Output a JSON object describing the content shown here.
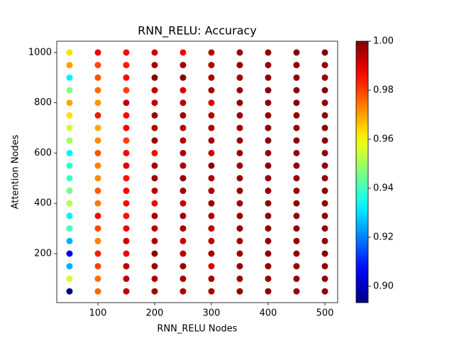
{
  "chart_data": {
    "type": "scatter",
    "title": "RNN_RELU: Accuracy",
    "x_label": "RNN_RELU Nodes",
    "y_label": "Attention Nodes",
    "x": [
      50,
      50,
      50,
      50,
      50,
      50,
      50,
      50,
      50,
      50,
      50,
      50,
      50,
      50,
      50,
      50,
      50,
      50,
      50,
      50,
      100,
      100,
      100,
      100,
      100,
      100,
      100,
      100,
      100,
      100,
      100,
      100,
      100,
      100,
      100,
      100,
      100,
      100,
      100,
      100,
      150,
      150,
      150,
      150,
      150,
      150,
      150,
      150,
      150,
      150,
      150,
      150,
      150,
      150,
      150,
      150,
      150,
      150,
      150,
      150,
      200,
      200,
      200,
      200,
      200,
      200,
      200,
      200,
      200,
      200,
      200,
      200,
      200,
      200,
      200,
      200,
      200,
      200,
      200,
      200,
      250,
      250,
      250,
      250,
      250,
      250,
      250,
      250,
      250,
      250,
      250,
      250,
      250,
      250,
      250,
      250,
      250,
      250,
      250,
      250,
      300,
      300,
      300,
      300,
      300,
      300,
      300,
      300,
      300,
      300,
      300,
      300,
      300,
      300,
      300,
      300,
      300,
      300,
      300,
      300,
      350,
      350,
      350,
      350,
      350,
      350,
      350,
      350,
      350,
      350,
      350,
      350,
      350,
      350,
      350,
      350,
      350,
      350,
      350,
      350,
      400,
      400,
      400,
      400,
      400,
      400,
      400,
      400,
      400,
      400,
      400,
      400,
      400,
      400,
      400,
      400,
      400,
      400,
      400,
      400,
      450,
      450,
      450,
      450,
      450,
      450,
      450,
      450,
      450,
      450,
      450,
      450,
      450,
      450,
      450,
      450,
      450,
      450,
      450,
      450,
      500,
      500,
      500,
      500,
      500,
      500,
      500,
      500,
      500,
      500,
      500,
      500,
      500,
      500,
      500,
      500,
      500,
      500,
      500,
      500
    ],
    "y": [
      50,
      100,
      150,
      200,
      250,
      300,
      350,
      400,
      450,
      500,
      550,
      600,
      650,
      700,
      750,
      800,
      850,
      900,
      950,
      1000,
      50,
      100,
      150,
      200,
      250,
      300,
      350,
      400,
      450,
      500,
      550,
      600,
      650,
      700,
      750,
      800,
      850,
      900,
      950,
      1000,
      50,
      100,
      150,
      200,
      250,
      300,
      350,
      400,
      450,
      500,
      550,
      600,
      650,
      700,
      750,
      800,
      850,
      900,
      950,
      1000,
      50,
      100,
      150,
      200,
      250,
      300,
      350,
      400,
      450,
      500,
      550,
      600,
      650,
      700,
      750,
      800,
      850,
      900,
      950,
      1000,
      50,
      100,
      150,
      200,
      250,
      300,
      350,
      400,
      450,
      500,
      550,
      600,
      650,
      700,
      750,
      800,
      850,
      900,
      950,
      1000,
      50,
      100,
      150,
      200,
      250,
      300,
      350,
      400,
      450,
      500,
      550,
      600,
      650,
      700,
      750,
      800,
      850,
      900,
      950,
      1000,
      50,
      100,
      150,
      200,
      250,
      300,
      350,
      400,
      450,
      500,
      550,
      600,
      650,
      700,
      750,
      800,
      850,
      900,
      950,
      1000,
      50,
      100,
      150,
      200,
      250,
      300,
      350,
      400,
      450,
      500,
      550,
      600,
      650,
      700,
      750,
      800,
      850,
      900,
      950,
      1000,
      50,
      100,
      150,
      200,
      250,
      300,
      350,
      400,
      450,
      500,
      550,
      600,
      650,
      700,
      750,
      800,
      850,
      900,
      950,
      1000,
      50,
      100,
      150,
      200,
      250,
      300,
      350,
      400,
      450,
      500,
      550,
      600,
      650,
      700,
      750,
      800,
      850,
      900,
      950,
      1000
    ],
    "c": [
      0.893,
      0.955,
      0.925,
      0.905,
      0.925,
      0.94,
      0.932,
      0.952,
      0.946,
      0.94,
      0.938,
      0.932,
      0.95,
      0.955,
      0.963,
      0.969,
      0.947,
      0.932,
      0.97,
      0.963,
      0.976,
      0.975,
      0.98,
      0.984,
      0.973,
      0.979,
      0.986,
      0.974,
      0.977,
      0.972,
      0.973,
      0.978,
      0.972,
      0.969,
      0.985,
      0.971,
      0.975,
      0.978,
      0.979,
      0.988,
      0.994,
      0.994,
      0.994,
      0.988,
      0.992,
      0.988,
      0.985,
      0.986,
      0.986,
      0.985,
      0.99,
      0.987,
      0.98,
      0.987,
      0.986,
      0.994,
      0.98,
      0.986,
      0.984,
      0.986,
      0.996,
      0.995,
      0.997,
      0.999,
      0.995,
      0.994,
      0.996,
      0.987,
      0.994,
      0.997,
      0.996,
      0.986,
      0.997,
      0.994,
      0.997,
      0.993,
      0.993,
      1.0,
      0.996,
      0.992,
      0.996,
      0.996,
      0.998,
      0.994,
      0.992,
      0.996,
      0.997,
      0.993,
      0.996,
      0.998,
      0.996,
      0.995,
      0.994,
      0.994,
      0.997,
      0.994,
      0.991,
      0.999,
      0.996,
      0.987,
      0.996,
      0.996,
      0.99,
      0.996,
      0.993,
      0.994,
      0.996,
      0.997,
      0.995,
      0.996,
      0.999,
      0.992,
      0.996,
      0.995,
      0.994,
      0.99,
      0.996,
      0.995,
      0.994,
      0.994,
      0.998,
      0.997,
      0.998,
      0.997,
      0.996,
      0.997,
      0.998,
      0.996,
      0.998,
      0.997,
      0.997,
      0.998,
      0.997,
      0.996,
      0.997,
      0.998,
      0.997,
      0.996,
      0.998,
      0.997,
      0.998,
      0.997,
      0.998,
      0.999,
      0.998,
      0.997,
      0.998,
      0.998,
      0.998,
      0.997,
      0.998,
      0.997,
      0.998,
      0.998,
      0.997,
      0.998,
      0.999,
      0.998,
      0.997,
      0.998,
      0.997,
      0.998,
      0.997,
      0.998,
      0.998,
      0.998,
      0.997,
      0.998,
      0.997,
      0.998,
      0.998,
      0.997,
      0.998,
      0.997,
      0.998,
      0.999,
      0.999,
      0.998,
      0.998,
      0.999,
      0.998,
      0.998,
      0.998,
      0.999,
      0.998,
      0.998,
      0.998,
      0.998,
      0.998,
      0.998,
      0.998,
      0.998,
      0.998,
      0.998,
      0.998,
      0.998,
      0.999,
      0.998,
      0.998,
      0.999
    ],
    "colormap": "jet",
    "xlim": [
      27.5,
      522.5
    ],
    "xticks": [
      100,
      200,
      300,
      400,
      500
    ],
    "ylim": [
      5,
      1045
    ],
    "yticks": [
      200,
      400,
      600,
      800,
      1000
    ],
    "clim": [
      0.8933,
      1.0
    ],
    "cticks": [
      {
        "value": 0.9,
        "label": "0.90"
      },
      0.92,
      0.94,
      0.96,
      0.98,
      {
        "value": 1.0,
        "label": "1.00"
      }
    ]
  }
}
